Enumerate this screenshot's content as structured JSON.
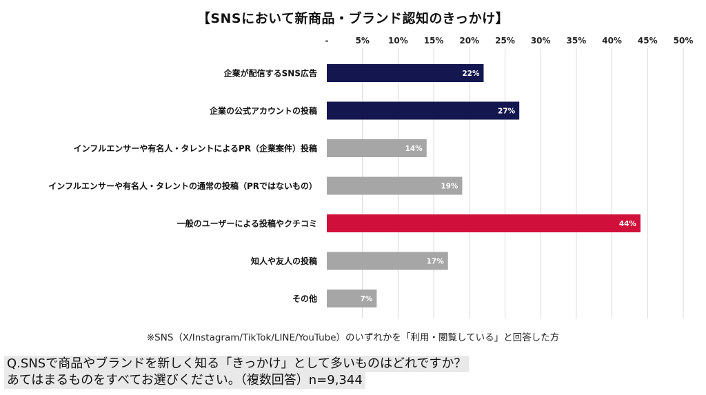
{
  "title": "【SNSにおいて新商品・ブランド認知のきっかけ】",
  "footnote": "※SNS（X/Instagram/TikTok/LINE/YouTube）のいずれかを「利用・閲覧している」と回答した方",
  "question": {
    "line1": "Q.SNSで商品やブランドを新しく知る「きっかけ」として多いものはどれですか？",
    "line2": "あてはまるものをすべてお選びください。（複数回答）n=9,344"
  },
  "colors": {
    "navy": "#14174f",
    "gray": "#a6a6a6",
    "red": "#d0103a",
    "grid": "#d9d9d9"
  },
  "chart_data": {
    "type": "bar",
    "orientation": "horizontal",
    "title": "【SNSにおいて新商品・ブランド認知のきっかけ】",
    "xlim": [
      0,
      50
    ],
    "ticks": [
      0,
      5,
      10,
      15,
      20,
      25,
      30,
      35,
      40,
      45,
      50
    ],
    "tick_labels": [
      "-",
      "5%",
      "10%",
      "15%",
      "20%",
      "25%",
      "30%",
      "35%",
      "40%",
      "45%",
      "50%"
    ],
    "axis_position": "top",
    "grid": true,
    "categories": [
      "企業が配信するSNS広告",
      "企業の公式アカウントの投稿",
      "インフルエンサーや有名人・タレントによるPR（企業案件）投稿",
      "インフルエンサーや有名人・タレントの通常の投稿（PRではないもの）",
      "一般のユーザーによる投稿やクチコミ",
      "知人や友人の投稿",
      "その他"
    ],
    "values": [
      22,
      27,
      14,
      19,
      44,
      17,
      7
    ],
    "value_labels": [
      "22%",
      "27%",
      "14%",
      "19%",
      "44%",
      "17%",
      "7%"
    ],
    "bar_colors": [
      "navy",
      "navy",
      "gray",
      "gray",
      "red",
      "gray",
      "gray"
    ]
  }
}
